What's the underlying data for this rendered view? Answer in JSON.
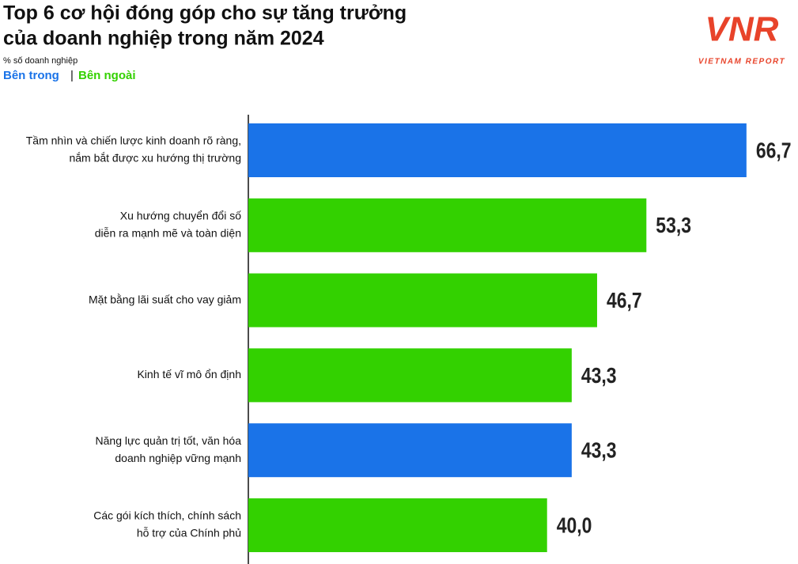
{
  "chart_data": {
    "type": "bar",
    "orientation": "horizontal",
    "title": [
      "Top 6 cơ hội đóng góp cho sự tăng trưởng",
      "của doanh nghiệp trong năm 2024"
    ],
    "subtitle": "% số doanh nghiệp",
    "legend": [
      {
        "name": "Bên trong",
        "color": "#1a73e8"
      },
      {
        "name": "Bên ngoài",
        "color": "#33d100"
      }
    ],
    "legend_separator": "|",
    "categories": [
      [
        "Tầm nhìn và chiến lược kinh doanh rõ ràng,",
        "nắm bắt được xu hướng thị trường"
      ],
      [
        "Xu hướng chuyển đổi số",
        "diễn ra mạnh mẽ và toàn diện"
      ],
      [
        "Mặt bằng lãi suất cho vay giảm"
      ],
      [
        "Kinh tế vĩ mô ổn định"
      ],
      [
        "Năng lực quản trị tốt, văn hóa",
        "doanh nghiệp vững mạnh"
      ],
      [
        "Các gói kích thích, chính sách",
        "hỗ trợ của Chính phủ"
      ]
    ],
    "values": [
      66.7,
      53.3,
      46.7,
      43.3,
      43.3,
      40.0
    ],
    "value_labels": [
      "66,7",
      "53,3",
      "46,7",
      "43,3",
      "43,3",
      "40,0"
    ],
    "colors": [
      "#1a73e8",
      "#33d100",
      "#33d100",
      "#33d100",
      "#1a73e8",
      "#33d100"
    ],
    "xlim": [
      0,
      70
    ],
    "logo": {
      "text": "VNR",
      "caption": "VIETNAM REPORT"
    }
  }
}
